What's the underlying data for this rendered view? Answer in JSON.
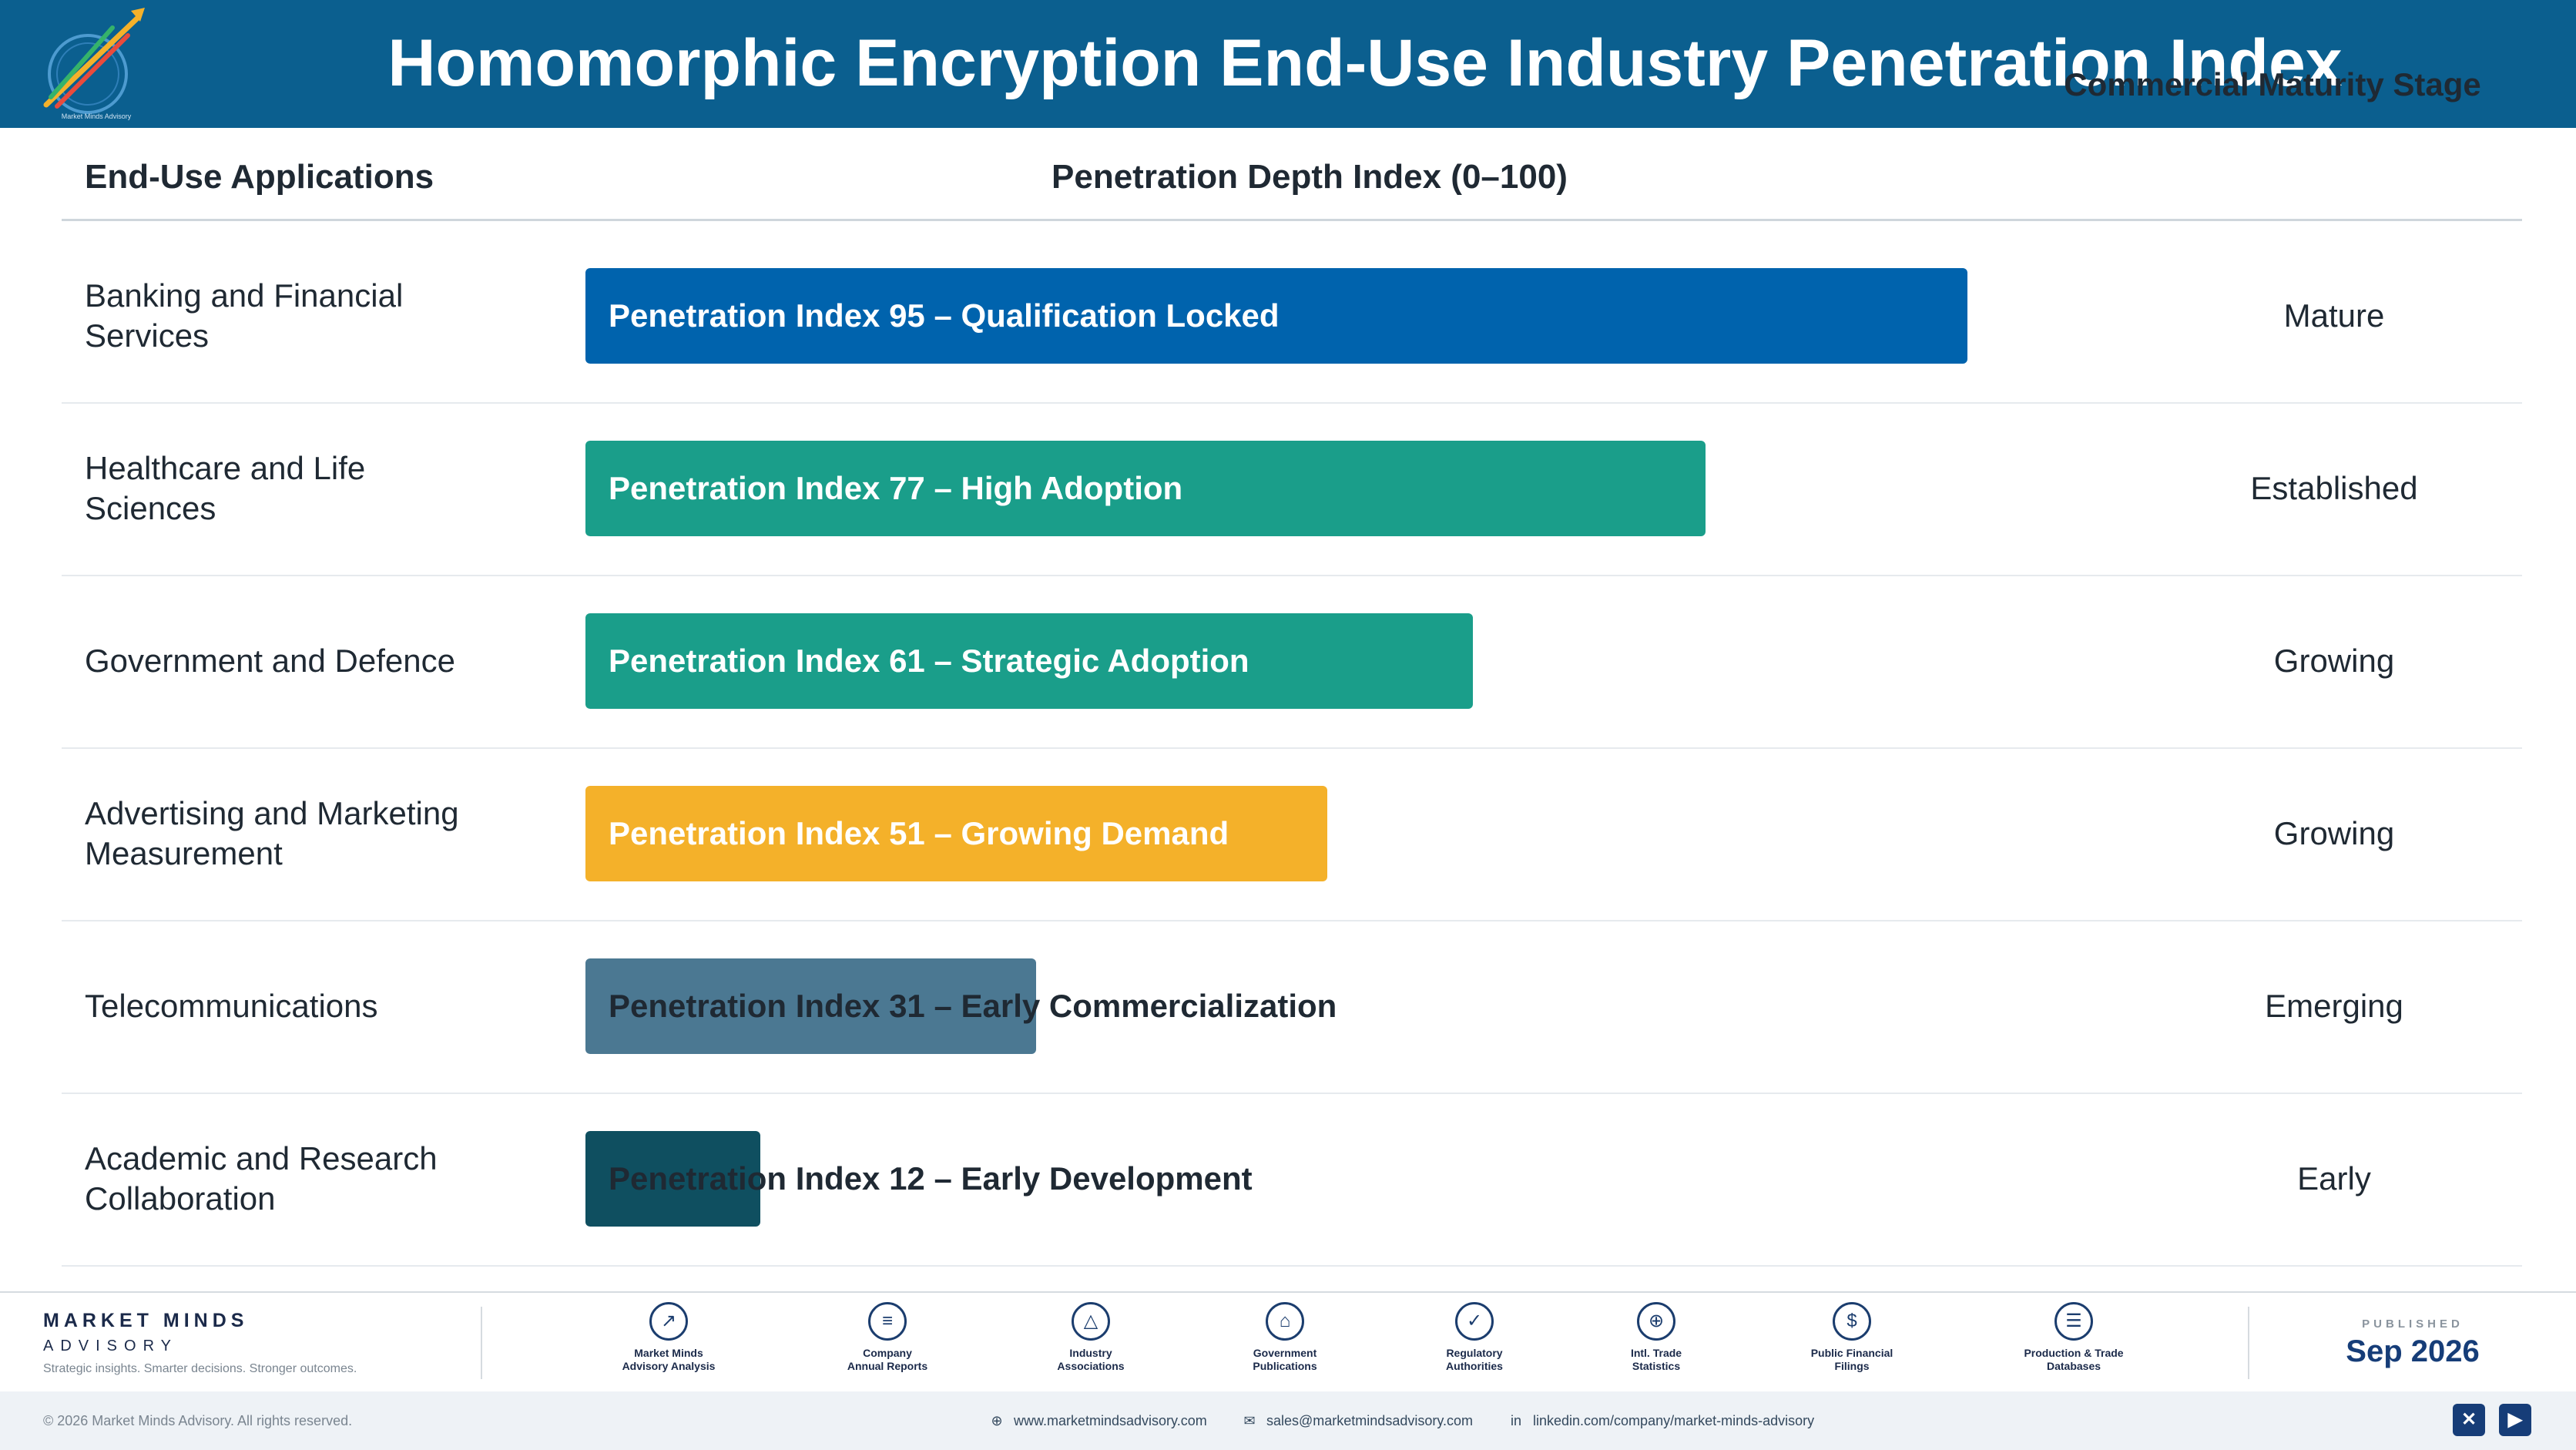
{
  "header": {
    "title": "Homomorphic Encryption End-Use Industry Penetration Index"
  },
  "columns": {
    "applications": "End-Use Applications",
    "depth": "Penetration Depth Index (0–100)",
    "stage": "Commercial Maturity Stage"
  },
  "chart_data": {
    "type": "bar",
    "orientation": "horizontal",
    "xlim": [
      0,
      100
    ],
    "categories": [
      "Banking and Financial Services",
      "Healthcare and Life Sciences",
      "Government and Defence",
      "Advertising and Marketing Measurement",
      "Telecommunications",
      "Academic and Research Collaboration"
    ],
    "values": [
      95,
      77,
      61,
      51,
      31,
      12
    ],
    "bar_labels": [
      "Penetration Index 95 – Qualification Locked",
      "Penetration Index 77 – High Adoption",
      "Penetration Index 61 – Strategic Adoption",
      "Penetration Index 51 – Growing Demand",
      "Penetration Index 31 – Early Commercialization",
      "Penetration Index 12 – Early Development"
    ],
    "stages": [
      "Mature",
      "Established",
      "Growing",
      "Growing",
      "Emerging",
      "Early"
    ],
    "colors": [
      "#0063ad",
      "#1a9e8a",
      "#1a9e8a",
      "#f4b12a",
      "#4b7892",
      "#0f4f60"
    ]
  },
  "rows": [
    {
      "label_lines": [
        "Banking and Financial",
        "Services"
      ],
      "bar_label": "Penetration Index 95 – Qualification Locked",
      "stage": "Mature"
    },
    {
      "label_lines": [
        "Healthcare and Life",
        "Sciences"
      ],
      "bar_label": "Penetration Index 77 – High Adoption",
      "stage": "Established"
    },
    {
      "label_lines": [
        "Government and Defence",
        ""
      ],
      "bar_label": "Penetration Index 61 – Strategic Adoption",
      "stage": "Growing"
    },
    {
      "label_lines": [
        "Advertising and Marketing",
        "Measurement"
      ],
      "bar_label": "Penetration Index 51 – Growing Demand",
      "stage": "Growing"
    },
    {
      "label_lines": [
        "Telecommunications",
        ""
      ],
      "bar_label": "Penetration Index 31 – Early Commercialization",
      "stage": "Emerging"
    },
    {
      "label_lines": [
        "Academic and Research",
        "Collaboration"
      ],
      "bar_label": "Penetration Index 12 – Early Development",
      "stage": "Early"
    }
  ],
  "footer": {
    "brand_name": "MARKET MINDS",
    "brand_sub": "ADVISORY",
    "brand_tagline": "Strategic insights. Smarter decisions. Stronger outcomes.",
    "logo_text": "Market Minds Advisory",
    "sources": [
      {
        "icon": "trend-chart-icon",
        "glyph": "↗",
        "line1": "Market Minds",
        "line2": "Advisory Analysis"
      },
      {
        "icon": "document-icon",
        "glyph": "≡",
        "line1": "Company",
        "line2": "Annual Reports"
      },
      {
        "icon": "network-icon",
        "glyph": "△",
        "line1": "Industry",
        "line2": "Associations"
      },
      {
        "icon": "government-building-icon",
        "glyph": "⌂",
        "line1": "Government",
        "line2": "Publications"
      },
      {
        "icon": "shield-icon",
        "glyph": "✓",
        "line1": "Regulatory",
        "line2": "Authorities"
      },
      {
        "icon": "globe-icon",
        "glyph": "⊕",
        "line1": "Intl. Trade",
        "line2": "Statistics"
      },
      {
        "icon": "dollar-coin-icon",
        "glyph": "$",
        "line1": "Public Financial",
        "line2": "Filings"
      },
      {
        "icon": "database-icon",
        "glyph": "☰",
        "line1": "Production & Trade",
        "line2": "Databases"
      }
    ],
    "published_label": "PUBLISHED",
    "published_date": "Sep 2026",
    "copyright": "© 2026 Market Minds Advisory. All rights reserved.",
    "website": "www.marketmindsadvisory.com",
    "email": "sales@marketmindsadvisory.com",
    "linkedin": "linkedin.com/company/market-minds-advisory",
    "social": [
      {
        "icon": "x-twitter-icon",
        "glyph": "✕"
      },
      {
        "icon": "youtube-icon",
        "glyph": "▶"
      }
    ]
  }
}
